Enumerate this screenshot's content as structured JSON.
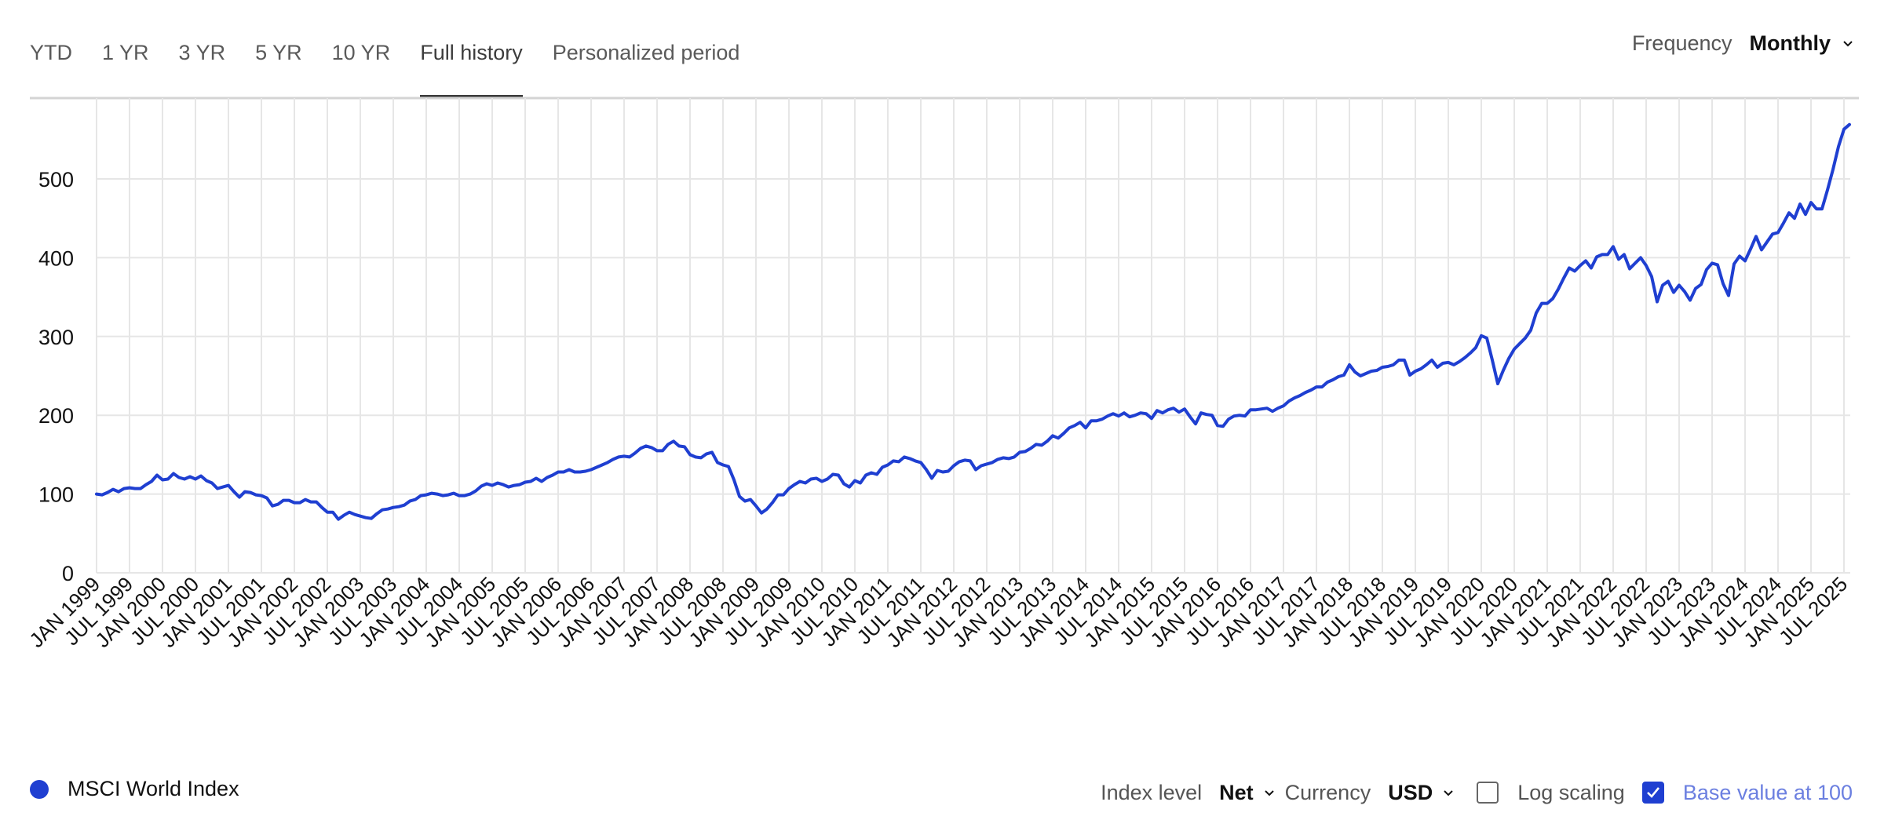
{
  "tabs": [
    {
      "label": "YTD",
      "active": false
    },
    {
      "label": "1 YR",
      "active": false
    },
    {
      "label": "3 YR",
      "active": false
    },
    {
      "label": "5 YR",
      "active": false
    },
    {
      "label": "10 YR",
      "active": false
    },
    {
      "label": "Full history",
      "active": true
    },
    {
      "label": "Personalized period",
      "active": false
    }
  ],
  "frequency": {
    "label": "Frequency",
    "value": "Monthly",
    "icon": "chevron-down-icon"
  },
  "legend": {
    "label": "MSCI World Index",
    "color": "#1f3fd1"
  },
  "controls": {
    "index_level": {
      "label": "Index level",
      "value": "Net"
    },
    "currency": {
      "label": "Currency",
      "value": "USD"
    },
    "log_scaling": {
      "label": "Log scaling",
      "checked": false
    },
    "base_value": {
      "label": "Base value at 100",
      "checked": true
    }
  },
  "colors": {
    "line": "#1f3fd1",
    "grid": "#e6e6e6",
    "accent": "#1f3fd1",
    "accent_text": "#6b7fe0"
  },
  "chart_data": {
    "type": "line",
    "title": "",
    "xlabel": "",
    "ylabel": "",
    "ylim": [
      0,
      590
    ],
    "yticks": [
      0,
      100,
      200,
      300,
      400,
      500
    ],
    "grid": true,
    "legend_position": "bottom-left",
    "x_start": "JAN 1999",
    "x_frequency": "monthly",
    "x_tick_labels": [
      "JAN 1999",
      "JUL 1999",
      "JAN 2000",
      "JUL 2000",
      "JAN 2001",
      "JUL 2001",
      "JAN 2002",
      "JUL 2002",
      "JAN 2003",
      "JUL 2003",
      "JAN 2004",
      "JUL 2004",
      "JAN 2005",
      "JUL 2005",
      "JAN 2006",
      "JUL 2006",
      "JAN 2007",
      "JUL 2007",
      "JAN 2008",
      "JUL 2008",
      "JAN 2009",
      "JUL 2009",
      "JAN 2010",
      "JUL 2010",
      "JAN 2011",
      "JUL 2011",
      "JAN 2012",
      "JUL 2012",
      "JAN 2013",
      "JUL 2013",
      "JAN 2014",
      "JUL 2014",
      "JAN 2015",
      "JUL 2015",
      "JAN 2016",
      "JUL 2016",
      "JAN 2017",
      "JUL 2017",
      "JAN 2018",
      "JUL 2018",
      "JAN 2019",
      "JUL 2019",
      "JAN 2020",
      "JUL 2020",
      "JAN 2021",
      "JUL 2021",
      "JAN 2022",
      "JUL 2022",
      "JAN 2023",
      "JUL 2023",
      "JAN 2024",
      "JUL 2024",
      "JAN 2025",
      "JUL 2025"
    ],
    "series": [
      {
        "name": "MSCI World Index",
        "values": [
          100,
          99,
          102,
          106,
          103,
          107,
          108,
          107,
          107,
          112,
          116,
          124,
          118,
          119,
          126,
          121,
          119,
          122,
          119,
          123,
          117,
          114,
          107,
          109,
          111,
          103,
          96,
          103,
          102,
          99,
          98,
          95,
          85,
          87,
          92,
          92,
          89,
          89,
          93,
          90,
          90,
          83,
          77,
          77,
          68,
          73,
          77,
          74,
          72,
          70,
          69,
          75,
          80,
          81,
          83,
          84,
          86,
          91,
          93,
          98,
          99,
          101,
          100,
          98,
          99,
          101,
          98,
          98,
          100,
          104,
          110,
          113,
          111,
          114,
          112,
          109,
          111,
          112,
          115,
          116,
          120,
          116,
          121,
          124,
          128,
          128,
          131,
          128,
          128,
          129,
          131,
          134,
          137,
          140,
          144,
          147,
          148,
          147,
          152,
          158,
          161,
          159,
          155,
          155,
          163,
          167,
          161,
          160,
          150,
          147,
          146,
          151,
          153,
          140,
          137,
          135,
          118,
          97,
          91,
          93,
          85,
          76,
          81,
          89,
          99,
          99,
          107,
          112,
          116,
          114,
          119,
          120,
          116,
          119,
          125,
          124,
          113,
          109,
          117,
          114,
          124,
          127,
          125,
          134,
          137,
          142,
          141,
          147,
          145,
          142,
          140,
          131,
          120,
          130,
          128,
          129,
          136,
          141,
          143,
          142,
          131,
          136,
          138,
          140,
          144,
          146,
          145,
          147,
          153,
          154,
          158,
          163,
          162,
          167,
          174,
          171,
          177,
          184,
          187,
          191,
          184,
          193,
          193,
          195,
          199,
          202,
          199,
          203,
          198,
          200,
          203,
          202,
          196,
          206,
          203,
          207,
          209,
          204,
          208,
          198,
          189,
          203,
          201,
          200,
          187,
          186,
          195,
          199,
          200,
          199,
          207,
          207,
          208,
          209,
          205,
          209,
          212,
          218,
          222,
          225,
          229,
          232,
          236,
          236,
          242,
          245,
          249,
          251,
          264,
          255,
          250,
          253,
          256,
          257,
          261,
          262,
          264,
          270,
          270,
          251,
          256,
          259,
          264,
          270,
          261,
          266,
          267,
          264,
          268,
          273,
          279,
          286,
          301,
          298,
          270,
          240,
          257,
          272,
          284,
          291,
          298,
          308,
          330,
          342,
          342,
          348,
          360,
          374,
          387,
          383,
          390,
          396,
          387,
          401,
          404,
          404,
          414,
          398,
          404,
          386,
          393,
          400,
          390,
          376,
          344,
          365,
          370,
          356,
          365,
          357,
          346,
          361,
          366,
          385,
          393,
          391,
          367,
          352,
          392,
          402,
          396,
          411,
          427,
          410,
          420,
          430,
          432,
          444,
          457,
          450,
          468,
          455,
          470,
          462,
          462,
          486,
          512,
          541,
          563,
          569
        ]
      }
    ]
  }
}
